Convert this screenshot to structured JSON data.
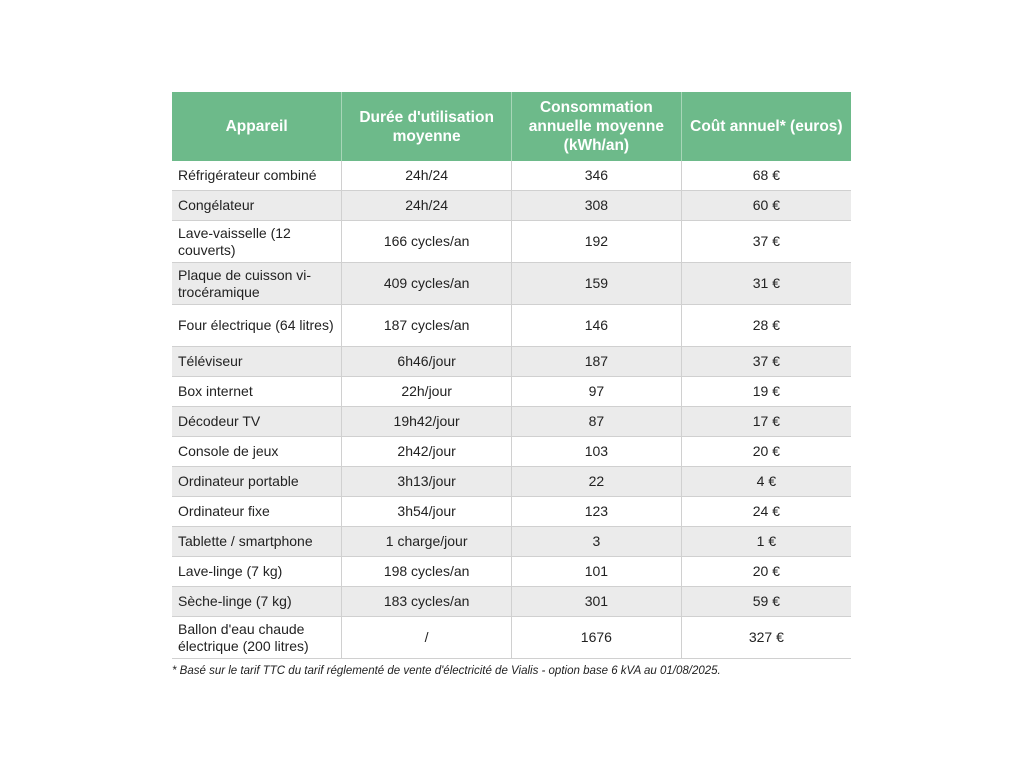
{
  "headers": [
    "Appareil",
    "Durée d'utilisation moyenne",
    "Consommation annuelle moyenne (kWh/an)",
    "Coût annuel* (euros)"
  ],
  "rows": [
    [
      "Réfrigérateur combiné",
      "24h/24",
      "346",
      "68 €"
    ],
    [
      "Congélateur",
      "24h/24",
      "308",
      "60 €"
    ],
    [
      "Lave-vaisselle (12 couverts)",
      "166 cycles/an",
      "192",
      "37 €"
    ],
    [
      "Plaque de cuisson vi-trocéramique",
      "409 cycles/an",
      "159",
      "31 €"
    ],
    [
      "Four électrique (64 litres)",
      "187 cycles/an",
      "146",
      "28 €"
    ],
    [
      "Téléviseur",
      "6h46/jour",
      "187",
      "37 €"
    ],
    [
      "Box internet",
      "22h/jour",
      "97",
      "19 €"
    ],
    [
      "Décodeur TV",
      "19h42/jour",
      "87",
      "17 €"
    ],
    [
      "Console de jeux",
      "2h42/jour",
      "103",
      "20 €"
    ],
    [
      "Ordinateur portable",
      "3h13/jour",
      "22",
      "4 €"
    ],
    [
      "Ordinateur fixe",
      "3h54/jour",
      "123",
      "24 €"
    ],
    [
      "Tablette / smartphone",
      "1 charge/jour",
      "3",
      "1 €"
    ],
    [
      "Lave-linge (7 kg)",
      "198 cycles/an",
      "101",
      "20 €"
    ],
    [
      "Sèche-linge (7 kg)",
      "183 cycles/an",
      "301",
      "59 €"
    ],
    [
      "Ballon d'eau chaude électrique (200 litres)",
      "/",
      "1676",
      "327 €"
    ]
  ],
  "footnote": "* Basé sur le tarif TTC du tarif réglementé de vente d'électricité de Vialis - option base 6 kVA au 01/08/2025.",
  "colors": {
    "header": "#6dba8a",
    "stripe": "#ebebeb"
  }
}
